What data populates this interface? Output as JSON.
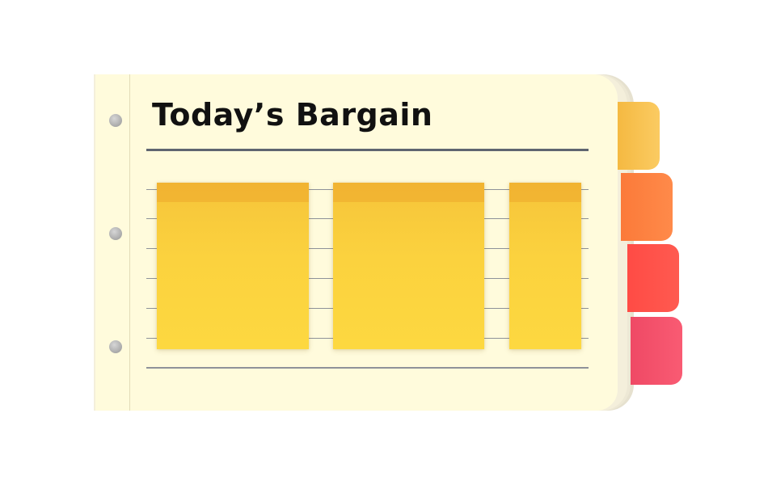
{
  "page": {
    "title": "Today’s Bargain"
  },
  "tabs": [
    {
      "name": "tab-yellow",
      "color": "#f7bd45"
    },
    {
      "name": "tab-orange",
      "color": "#fd7d3e"
    },
    {
      "name": "tab-red",
      "color": "#ff4e48"
    },
    {
      "name": "tab-pink",
      "color": "#f24f6a"
    }
  ],
  "colors": {
    "paper": "#fffbdc",
    "sticky_note": "#fdd840",
    "rule": "#5f6570"
  },
  "sticky_notes": [
    {
      "name": "sticky-note-1"
    },
    {
      "name": "sticky-note-2"
    },
    {
      "name": "sticky-note-3"
    }
  ]
}
